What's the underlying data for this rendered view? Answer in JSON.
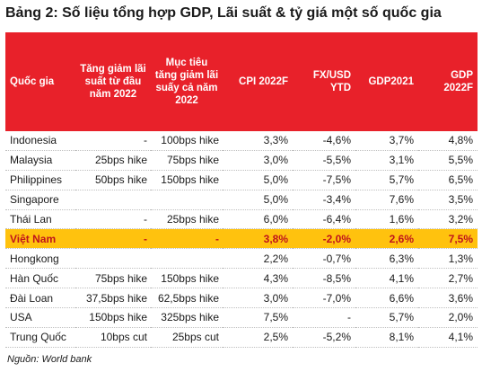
{
  "title": "Bảng 2: Số liệu tổng hợp GDP, Lãi suất & tỷ giá một số quốc gia",
  "columns": [
    "Quốc gia",
    "Tăng giảm lãi suất từ đầu năm 2022",
    "Mục tiêu tăng giảm lãi suấy cả năm 2022",
    "CPI 2022F",
    "FX/USD YTD",
    "GDP2021",
    "GDP 2022F"
  ],
  "rows": [
    [
      "Indonesia",
      "-",
      "100bps hike",
      "3,3%",
      "-4,6%",
      "3,7%",
      "4,8%"
    ],
    [
      "Malaysia",
      "25bps hike",
      "75bps hike",
      "3,0%",
      "-5,5%",
      "3,1%",
      "5,5%"
    ],
    [
      "Philippines",
      "50bps hike",
      "150bps hike",
      "5,0%",
      "-7,5%",
      "5,7%",
      "6,5%"
    ],
    [
      "Singapore",
      "",
      "",
      "5,0%",
      "-3,4%",
      "7,6%",
      "3,5%"
    ],
    [
      "Thái Lan",
      "-",
      "25bps hike",
      "6,0%",
      "-6,4%",
      "1,6%",
      "3,2%"
    ],
    [
      "Việt Nam",
      "-",
      "-",
      "3,8%",
      "-2,0%",
      "2,6%",
      "7,5%"
    ],
    [
      "Hongkong",
      "",
      "",
      "2,2%",
      "-0,7%",
      "6,3%",
      "1,3%"
    ],
    [
      "Hàn Quốc",
      "75bps hike",
      "150bps hike",
      "4,3%",
      "-8,5%",
      "4,1%",
      "2,7%"
    ],
    [
      "Đài Loan",
      "37,5bps hike",
      "62,5bps hike",
      "3,0%",
      "-7,0%",
      "6,6%",
      "3,6%"
    ],
    [
      "USA",
      "150bps hike",
      "325bps hike",
      "7,5%",
      "-",
      "5,7%",
      "2,0%"
    ],
    [
      "Trung Quốc",
      "10bps cut",
      "25bps cut",
      "2,5%",
      "-5,2%",
      "8,1%",
      "4,1%"
    ]
  ],
  "highlight_row": 5,
  "source": "Nguồn: World bank",
  "colors": {
    "header_bg": "#e8212a",
    "highlight_bg": "#ffc20e",
    "highlight_text": "#c0141c"
  }
}
